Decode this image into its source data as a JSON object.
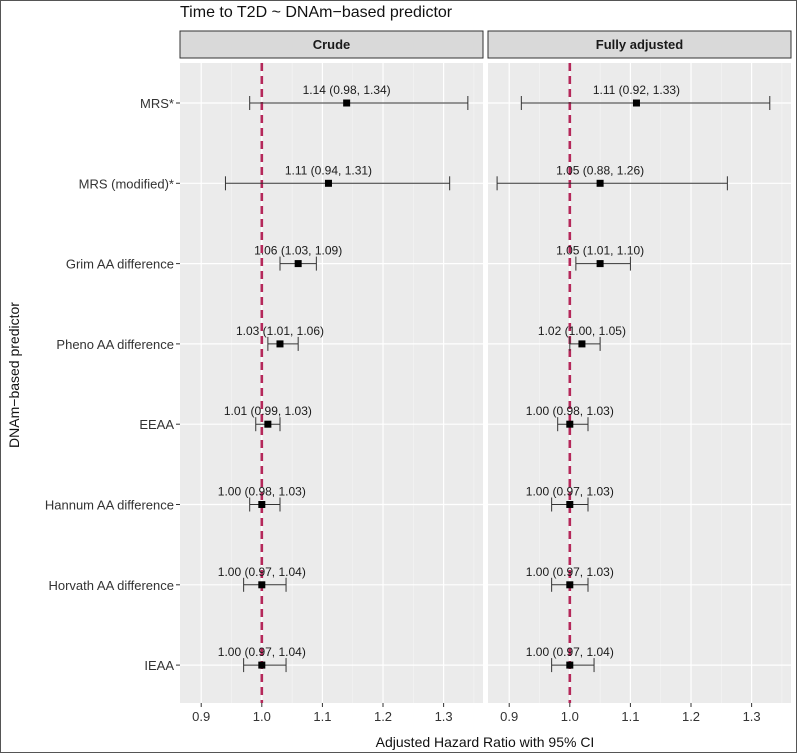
{
  "chart_data": {
    "type": "forest",
    "title": "Time to T2D ~ DNAm−based predictor",
    "xlabel": "Adjusted Hazard Ratio with 95% CI",
    "ylabel": "DNAm−based predictor",
    "xlim": [
      0.865,
      1.365
    ],
    "xticks": [
      0.9,
      1.0,
      1.1,
      1.2,
      1.3
    ],
    "xtick_labels": [
      "0.9",
      "1.0",
      "1.1",
      "1.2",
      "1.3"
    ],
    "reference_line": 1.0,
    "reference_color": "#b5285a",
    "categories": [
      "MRS*",
      "MRS (modified)*",
      "Grim AA difference",
      "Pheno AA difference",
      "EEAA",
      "Hannum AA difference",
      "Horvath AA difference",
      "IEAA"
    ],
    "panels": [
      {
        "name": "Crude",
        "points": [
          {
            "hr": 1.14,
            "lo": 0.98,
            "hi": 1.34,
            "label": "1.14 (0.98, 1.34)"
          },
          {
            "hr": 1.11,
            "lo": 0.94,
            "hi": 1.31,
            "label": "1.11 (0.94, 1.31)"
          },
          {
            "hr": 1.06,
            "lo": 1.03,
            "hi": 1.09,
            "label": "1.06 (1.03, 1.09)"
          },
          {
            "hr": 1.03,
            "lo": 1.01,
            "hi": 1.06,
            "label": "1.03 (1.01, 1.06)"
          },
          {
            "hr": 1.01,
            "lo": 0.99,
            "hi": 1.03,
            "label": "1.01 (0.99, 1.03)"
          },
          {
            "hr": 1.0,
            "lo": 0.98,
            "hi": 1.03,
            "label": "1.00 (0.98, 1.03)"
          },
          {
            "hr": 1.0,
            "lo": 0.97,
            "hi": 1.04,
            "label": "1.00 (0.97, 1.04)"
          },
          {
            "hr": 1.0,
            "lo": 0.97,
            "hi": 1.04,
            "label": "1.00 (0.97, 1.04)"
          }
        ]
      },
      {
        "name": "Fully adjusted",
        "points": [
          {
            "hr": 1.11,
            "lo": 0.92,
            "hi": 1.33,
            "label": "1.11 (0.92, 1.33)"
          },
          {
            "hr": 1.05,
            "lo": 0.88,
            "hi": 1.26,
            "label": "1.05 (0.88, 1.26)"
          },
          {
            "hr": 1.05,
            "lo": 1.01,
            "hi": 1.1,
            "label": "1.05 (1.01, 1.10)"
          },
          {
            "hr": 1.02,
            "lo": 1.0,
            "hi": 1.05,
            "label": "1.02 (1.00, 1.05)"
          },
          {
            "hr": 1.0,
            "lo": 0.98,
            "hi": 1.03,
            "label": "1.00 (0.98, 1.03)"
          },
          {
            "hr": 1.0,
            "lo": 0.97,
            "hi": 1.03,
            "label": "1.00 (0.97, 1.03)"
          },
          {
            "hr": 1.0,
            "lo": 0.97,
            "hi": 1.03,
            "label": "1.00 (0.97, 1.03)"
          },
          {
            "hr": 1.0,
            "lo": 0.97,
            "hi": 1.04,
            "label": "1.00 (0.97, 1.04)"
          }
        ]
      }
    ]
  }
}
